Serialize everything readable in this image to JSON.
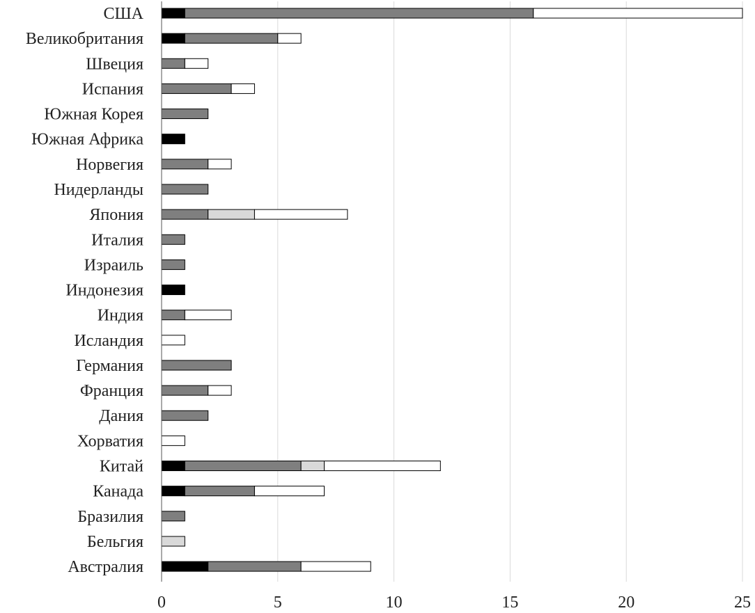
{
  "chart_data": {
    "type": "bar",
    "orientation": "horizontal",
    "stacked": true,
    "categories": [
      "США",
      "Великобритания",
      "Швеция",
      "Испания",
      "Южная Корея",
      "Южная Африка",
      "Норвегия",
      "Нидерланды",
      "Япония",
      "Италия",
      "Израиль",
      "Индонезия",
      "Индия",
      "Исландия",
      "Германия",
      "Франция",
      "Дания",
      "Хорватия",
      "Китай",
      "Канада",
      "Бразилия",
      "Бельгия",
      "Австралия"
    ],
    "series": [
      {
        "color": "#000000",
        "values": [
          1,
          1,
          0,
          0,
          0,
          1,
          0,
          0,
          0,
          0,
          0,
          1,
          0,
          0,
          0,
          0,
          0,
          0,
          1,
          1,
          0,
          0,
          2
        ]
      },
      {
        "color": "#7f7f7f",
        "values": [
          15,
          4,
          1,
          3,
          2,
          0,
          2,
          2,
          2,
          1,
          1,
          0,
          1,
          0,
          3,
          2,
          2,
          0,
          5,
          3,
          1,
          0,
          4
        ]
      },
      {
        "color": "#d9d9d9",
        "values": [
          0,
          0,
          0,
          0,
          0,
          0,
          0,
          0,
          2,
          0,
          0,
          0,
          0,
          0,
          0,
          0,
          0,
          0,
          1,
          0,
          0,
          1,
          0
        ]
      },
      {
        "color": "#ffffff",
        "values": [
          9,
          1,
          1,
          1,
          0,
          0,
          1,
          0,
          4,
          0,
          0,
          0,
          2,
          1,
          0,
          1,
          0,
          1,
          5,
          3,
          0,
          0,
          3
        ]
      }
    ],
    "x_ticks": [
      "0",
      "5",
      "10",
      "15",
      "20",
      "25"
    ],
    "xlim": [
      0,
      25
    ],
    "grid": true,
    "title": "",
    "xlabel": "",
    "ylabel": ""
  }
}
